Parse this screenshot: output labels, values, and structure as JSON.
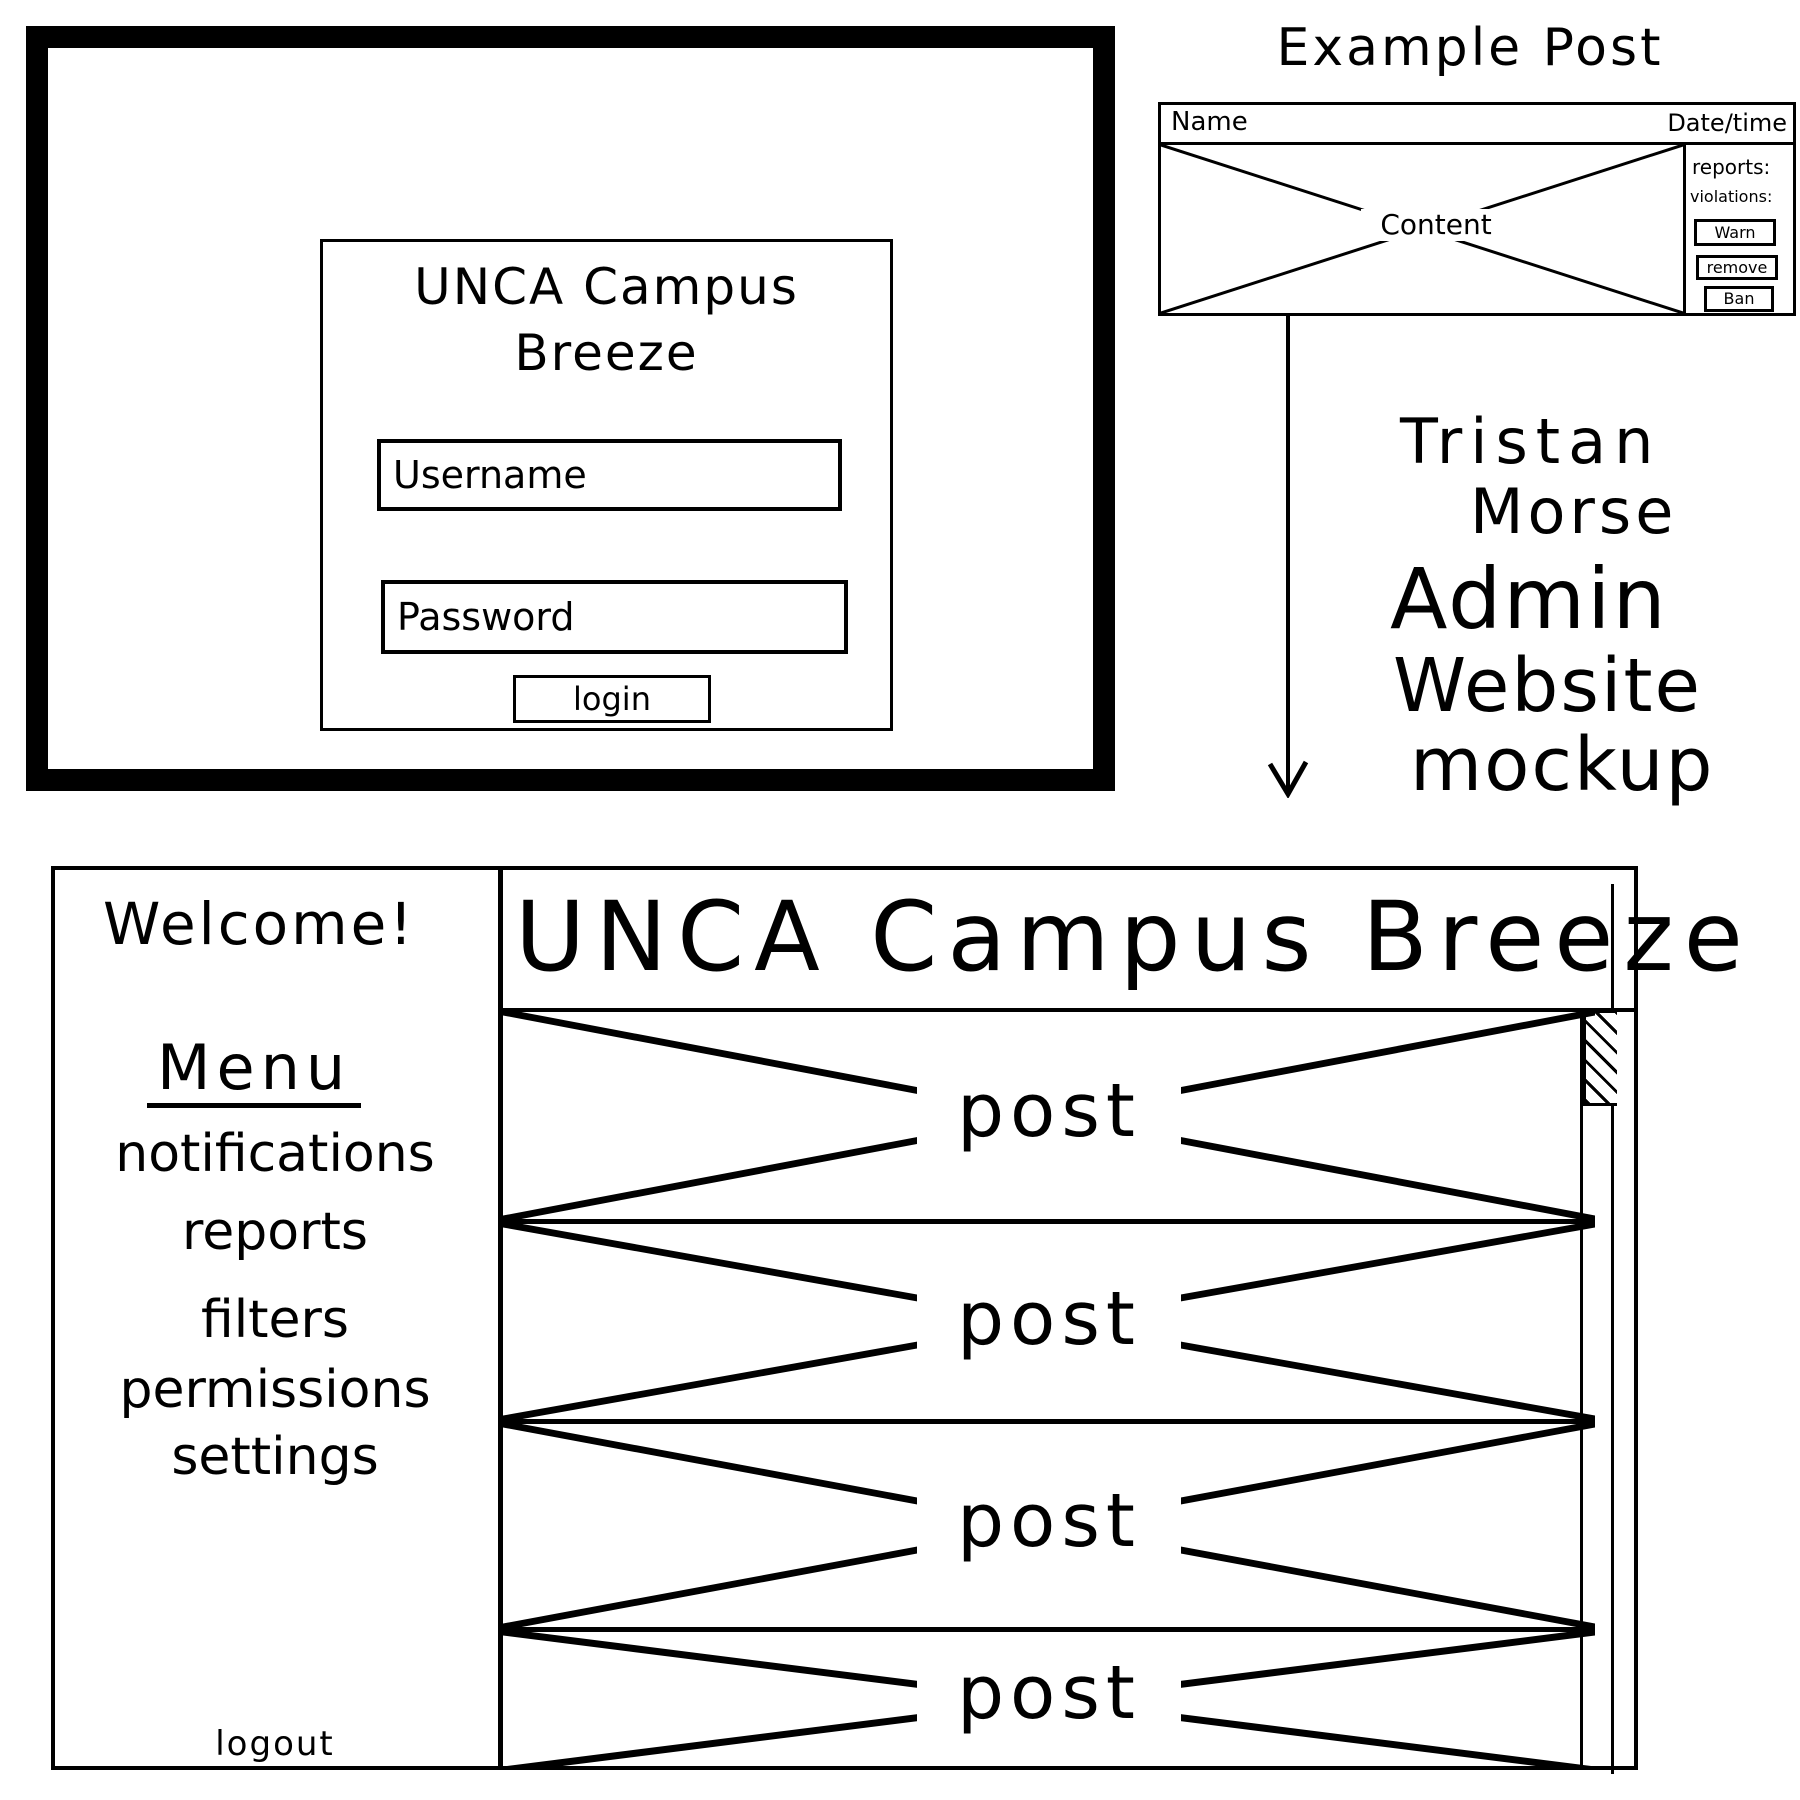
{
  "login": {
    "title": "UNCA Campus Breeze",
    "username_placeholder": "Username",
    "password_placeholder": "Password",
    "login_label": "login"
  },
  "example_post": {
    "heading": "Example Post",
    "name_label": "Name",
    "datetime_label": "Date/time",
    "content_label": "Content",
    "reports_label": "reports:",
    "violations_label": "violations:",
    "actions": {
      "warn": "Warn",
      "remove": "remove",
      "ban": "Ban"
    }
  },
  "author": {
    "first_name": "Tristan",
    "last_name": "Morse"
  },
  "caption": {
    "line1": "Admin",
    "line2": "Website",
    "line3": "mockup"
  },
  "dashboard": {
    "welcome": "Welcome!",
    "menu_heading": "Menu",
    "menu_items": [
      {
        "label": "notifications"
      },
      {
        "label": "reports"
      },
      {
        "label": "filters"
      },
      {
        "label": "permissions"
      },
      {
        "label": "settings"
      }
    ],
    "logout_label": "logout",
    "app_title": "UNCA Campus Breeze",
    "posts": [
      {
        "label": "post"
      },
      {
        "label": "post"
      },
      {
        "label": "post"
      },
      {
        "label": "post"
      }
    ]
  }
}
